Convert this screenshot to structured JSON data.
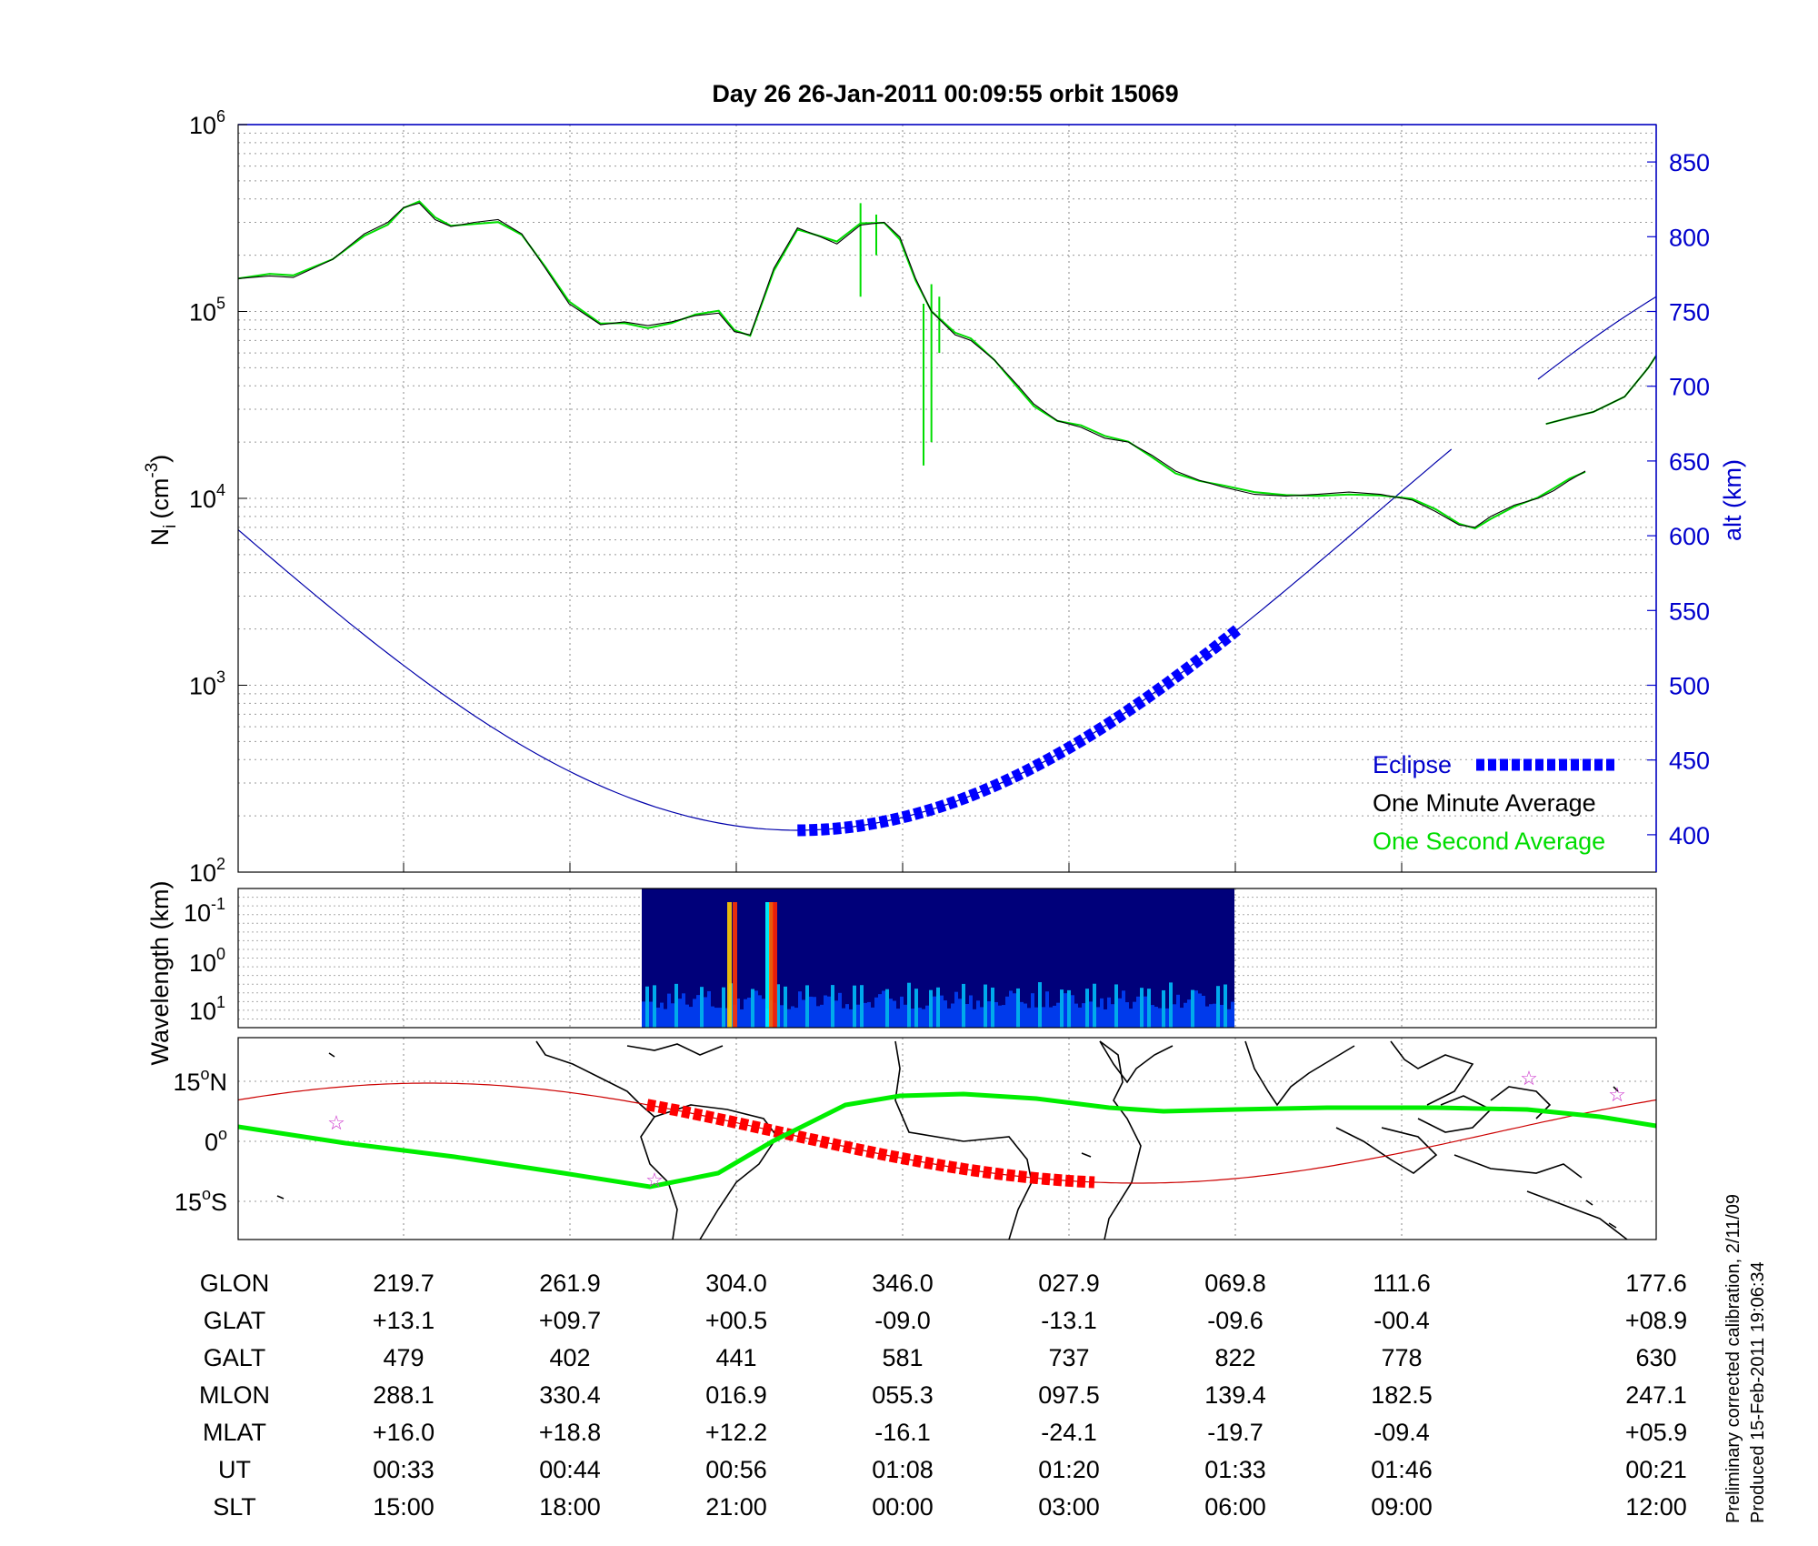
{
  "title": "Day 26  26-Jan-2011 00:09:55   orbit 15069",
  "colors": {
    "axis_left": "#000000",
    "axis_right": "#0000cc",
    "density_one_minute": "#000000",
    "density_one_second": "#00dd00",
    "altitude": "#0000aa",
    "eclipse": "#0000ff",
    "orbit_eclipse": "#ff0000",
    "orbit_line": "#cc0000",
    "mag_equator": "#00ee00",
    "star": "#cc33cc"
  },
  "chart_data": [
    {
      "type": "line",
      "ylabel": "N",
      "ylabel_sub": "i",
      "ylabel_unit": "(cm",
      "ylabel_unit_sup": "-3",
      "ylabel_unit_close": ")",
      "y_scale": "log",
      "ylim": [
        100,
        1000000
      ],
      "yticks": [
        {
          "base": "10",
          "exp": "2",
          "value": 100
        },
        {
          "base": "10",
          "exp": "3",
          "value": 1000
        },
        {
          "base": "10",
          "exp": "4",
          "value": 10000
        },
        {
          "base": "10",
          "exp": "5",
          "value": 100000
        },
        {
          "base": "10",
          "exp": "6",
          "value": 1000000
        }
      ],
      "y2label": "alt (km)",
      "y2lim": [
        375,
        875
      ],
      "y2ticks": [
        "400",
        "450",
        "500",
        "550",
        "600",
        "650",
        "700",
        "750",
        "800",
        "850"
      ],
      "x_categories": [
        "00:33",
        "00:44",
        "00:56",
        "01:08",
        "01:20",
        "01:33",
        "01:46",
        "00:21"
      ],
      "xlim_minutes": [
        0,
        8.55
      ],
      "legend": [
        {
          "label": "Eclipse",
          "color": "#0000ff",
          "marker": "thick-dashed"
        },
        {
          "label": "One Minute Average",
          "color": "#000000"
        },
        {
          "label": "One Second Average",
          "color": "#00dd00"
        }
      ],
      "legend_position": "bottom-right",
      "grid": true,
      "series": [
        {
          "name": "One Minute Average",
          "axis": "left",
          "segments": [
            [
              [
                0.0,
                150000
              ],
              [
                0.2,
                155000
              ],
              [
                0.35,
                152000
              ],
              [
                0.6,
                190000
              ],
              [
                0.8,
                260000
              ],
              [
                0.95,
                300000
              ],
              [
                1.05,
                360000
              ],
              [
                1.15,
                380000
              ],
              [
                1.25,
                310000
              ],
              [
                1.35,
                285000
              ],
              [
                1.5,
                300000
              ],
              [
                1.65,
                310000
              ],
              [
                1.8,
                260000
              ],
              [
                1.95,
                170000
              ],
              [
                2.1,
                110000
              ],
              [
                2.3,
                85000
              ],
              [
                2.45,
                88000
              ],
              [
                2.6,
                84000
              ],
              [
                2.75,
                88000
              ],
              [
                2.9,
                95000
              ],
              [
                3.05,
                98000
              ],
              [
                3.15,
                78000
              ],
              [
                3.25,
                75000
              ],
              [
                3.4,
                170000
              ],
              [
                3.55,
                280000
              ],
              [
                3.7,
                250000
              ],
              [
                3.8,
                230000
              ],
              [
                3.95,
                290000
              ],
              [
                4.1,
                300000
              ],
              [
                4.2,
                250000
              ],
              [
                4.3,
                150000
              ],
              [
                4.4,
                100000
              ],
              [
                4.55,
                75000
              ],
              [
                4.65,
                70000
              ],
              [
                4.8,
                55000
              ],
              [
                4.95,
                40000
              ],
              [
                5.05,
                32000
              ],
              [
                5.2,
                26000
              ],
              [
                5.35,
                24000
              ],
              [
                5.5,
                21000
              ],
              [
                5.65,
                20000
              ],
              [
                5.8,
                17000
              ],
              [
                5.95,
                14000
              ],
              [
                6.1,
                12500
              ],
              [
                6.25,
                11500
              ],
              [
                6.45,
                10500
              ],
              [
                6.65,
                10300
              ],
              [
                6.85,
                10500
              ],
              [
                7.05,
                10800
              ],
              [
                7.25,
                10500
              ],
              [
                7.45,
                9800
              ],
              [
                7.6,
                8500
              ],
              [
                7.75,
                7200
              ],
              [
                7.85,
                7000
              ],
              [
                7.95,
                8000
              ],
              [
                8.1,
                9200
              ],
              [
                8.25,
                10000
              ],
              [
                8.35,
                11000
              ],
              [
                8.45,
                12500
              ],
              [
                8.55,
                14000
              ]
            ],
            []
          ]
        }
      ]
    },
    {
      "type": "heatmap",
      "ylabel": "Wavelength (km)",
      "yticks": [
        {
          "base": "10",
          "exp": "-1"
        },
        {
          "base": "10",
          "exp": "0"
        },
        {
          "base": "10",
          "exp": "1"
        }
      ],
      "x_extent_ut": [
        "00:52",
        "01:38"
      ]
    },
    {
      "type": "line",
      "subtype": "map",
      "yticks": [
        {
          "value": "15",
          "sup": "o",
          "suffix": "N"
        },
        {
          "value": "0",
          "sup": "o",
          "suffix": ""
        },
        {
          "value": "15",
          "sup": "o",
          "suffix": "S"
        }
      ]
    }
  ],
  "density_right": [
    [
      8.55,
      14000
    ]
  ],
  "table": {
    "rows": [
      {
        "label": "GLON",
        "values": [
          "219.7",
          "261.9",
          "304.0",
          "346.0",
          "027.9",
          "069.8",
          "111.6",
          "177.6"
        ]
      },
      {
        "label": "GLAT",
        "values": [
          "+13.1",
          "+09.7",
          "+00.5",
          "-09.0",
          "-13.1",
          "-09.6",
          "-00.4",
          "+08.9"
        ]
      },
      {
        "label": "GALT",
        "values": [
          "479",
          "402",
          "441",
          "581",
          "737",
          "822",
          "778",
          "630"
        ]
      },
      {
        "label": "MLON",
        "values": [
          "288.1",
          "330.4",
          "016.9",
          "055.3",
          "097.5",
          "139.4",
          "182.5",
          "247.1"
        ]
      },
      {
        "label": "MLAT",
        "values": [
          "+16.0",
          "+18.8",
          "+12.2",
          "-16.1",
          "-24.1",
          "-19.7",
          "-09.4",
          "+05.9"
        ]
      },
      {
        "label": "UT",
        "values": [
          "00:33",
          "00:44",
          "00:56",
          "01:08",
          "01:20",
          "01:33",
          "01:46",
          "00:21"
        ]
      },
      {
        "label": "SLT",
        "values": [
          "15:00",
          "18:00",
          "21:00",
          "00:00",
          "03:00",
          "06:00",
          "09:00",
          "12:00"
        ]
      }
    ]
  },
  "footnote": {
    "line1": "Preliminary corrected calibration, 2/11/09",
    "line2": "Produced 15-Feb-2011 19:06:34"
  }
}
